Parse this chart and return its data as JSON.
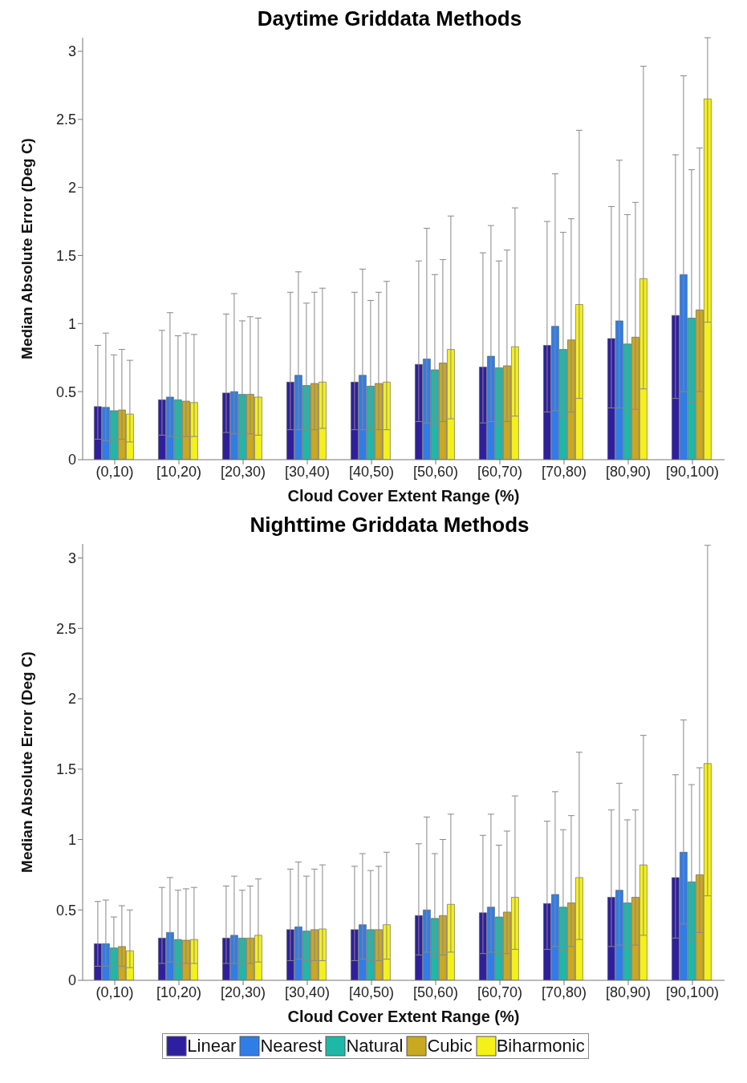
{
  "chart_data": [
    {
      "type": "bar",
      "title": "Daytime Griddata Methods",
      "xlabel": "Cloud Cover Extent Range (%)",
      "ylabel": "Median Absolute Error (Deg C)",
      "categories": [
        "(0,10)",
        "[10,20)",
        "[20,30)",
        "[30,40)",
        "[40,50)",
        "[50,60)",
        "[60,70)",
        "[70,80)",
        "[80,90)",
        "[90,100)"
      ],
      "ylim": [
        0,
        3.1
      ],
      "yticks": [
        0,
        0.5,
        1,
        1.5,
        2,
        2.5,
        3
      ],
      "legend": false,
      "series": [
        {
          "color": "#2e1f9e",
          "values": [
            0.39,
            0.44,
            0.49,
            0.57,
            0.57,
            0.7,
            0.68,
            0.84,
            0.89,
            1.06
          ],
          "errors": [
            [
              0.15,
              0.84
            ],
            [
              0.18,
              0.95
            ],
            [
              0.2,
              1.07
            ],
            [
              0.22,
              1.23
            ],
            [
              0.22,
              1.23
            ],
            [
              0.28,
              1.46
            ],
            [
              0.27,
              1.52
            ],
            [
              0.35,
              1.75
            ],
            [
              0.38,
              1.86
            ],
            [
              0.45,
              2.24
            ]
          ]
        },
        {
          "color": "#2f7de8",
          "values": [
            0.385,
            0.46,
            0.5,
            0.62,
            0.62,
            0.74,
            0.76,
            0.98,
            1.02,
            1.36
          ],
          "errors": [
            [
              0.14,
              0.93
            ],
            [
              0.17,
              1.08
            ],
            [
              0.19,
              1.22
            ],
            [
              0.22,
              1.38
            ],
            [
              0.22,
              1.4
            ],
            [
              0.27,
              1.7
            ],
            [
              0.28,
              1.72
            ],
            [
              0.36,
              2.1
            ],
            [
              0.38,
              2.2
            ],
            [
              0.5,
              2.82
            ]
          ]
        },
        {
          "color": "#1fb8a8",
          "values": [
            0.36,
            0.44,
            0.48,
            0.545,
            0.54,
            0.66,
            0.675,
            0.81,
            0.85,
            1.04
          ],
          "errors": [
            [
              0.14,
              0.77
            ],
            [
              0.17,
              0.91
            ],
            [
              0.19,
              1.02
            ],
            [
              0.21,
              1.15
            ],
            [
              0.21,
              1.17
            ],
            [
              0.26,
              1.36
            ],
            [
              0.26,
              1.46
            ],
            [
              0.32,
              1.67
            ],
            [
              0.34,
              1.8
            ],
            [
              0.42,
              2.13
            ]
          ]
        },
        {
          "color": "#c9a822",
          "values": [
            0.365,
            0.43,
            0.48,
            0.56,
            0.56,
            0.71,
            0.69,
            0.88,
            0.9,
            1.1
          ],
          "errors": [
            [
              0.15,
              0.81
            ],
            [
              0.17,
              0.93
            ],
            [
              0.19,
              1.05
            ],
            [
              0.22,
              1.23
            ],
            [
              0.22,
              1.23
            ],
            [
              0.28,
              1.47
            ],
            [
              0.28,
              1.54
            ],
            [
              0.35,
              1.77
            ],
            [
              0.37,
              1.89
            ],
            [
              0.5,
              2.29
            ]
          ]
        },
        {
          "color": "#f5f01a",
          "values": [
            0.335,
            0.42,
            0.46,
            0.57,
            0.57,
            0.81,
            0.83,
            1.14,
            1.33,
            2.65
          ],
          "errors": [
            [
              0.13,
              0.73
            ],
            [
              0.17,
              0.92
            ],
            [
              0.18,
              1.04
            ],
            [
              0.23,
              1.26
            ],
            [
              0.22,
              1.31
            ],
            [
              0.3,
              1.79
            ],
            [
              0.32,
              1.85
            ],
            [
              0.45,
              2.42
            ],
            [
              0.52,
              2.89
            ],
            [
              1.01,
              3.1
            ]
          ]
        }
      ]
    },
    {
      "type": "bar",
      "title": "Nighttime Griddata Methods",
      "xlabel": "Cloud Cover Extent Range (%)",
      "ylabel": "Median Absolute Error (Deg C)",
      "categories": [
        "(0,10)",
        "[10,20)",
        "[20,30)",
        "[30,40)",
        "[40,50)",
        "[50,60)",
        "[60,70)",
        "[70,80)",
        "[80,90)",
        "[90,100)"
      ],
      "ylim": [
        0,
        3.1
      ],
      "yticks": [
        0,
        0.5,
        1,
        1.5,
        2,
        2.5,
        3
      ],
      "legend": "bottom",
      "series": [
        {
          "name": "Linear",
          "color": "#2e1f9e",
          "values": [
            0.26,
            0.3,
            0.3,
            0.36,
            0.36,
            0.46,
            0.48,
            0.545,
            0.59,
            0.73
          ],
          "errors": [
            [
              0.1,
              0.56
            ],
            [
              0.12,
              0.66
            ],
            [
              0.12,
              0.67
            ],
            [
              0.14,
              0.79
            ],
            [
              0.14,
              0.81
            ],
            [
              0.18,
              0.97
            ],
            [
              0.19,
              1.03
            ],
            [
              0.22,
              1.13
            ],
            [
              0.24,
              1.21
            ],
            [
              0.3,
              1.46
            ]
          ]
        },
        {
          "name": "Nearest",
          "color": "#2f7de8",
          "values": [
            0.26,
            0.34,
            0.32,
            0.38,
            0.395,
            0.5,
            0.52,
            0.61,
            0.64,
            0.91
          ],
          "errors": [
            [
              0.1,
              0.57
            ],
            [
              0.13,
              0.73
            ],
            [
              0.12,
              0.74
            ],
            [
              0.15,
              0.84
            ],
            [
              0.15,
              0.9
            ],
            [
              0.2,
              1.16
            ],
            [
              0.2,
              1.18
            ],
            [
              0.24,
              1.34
            ],
            [
              0.25,
              1.4
            ],
            [
              0.4,
              1.85
            ]
          ]
        },
        {
          "name": "Natural",
          "color": "#1fb8a8",
          "values": [
            0.23,
            0.29,
            0.3,
            0.35,
            0.36,
            0.44,
            0.45,
            0.52,
            0.55,
            0.7
          ],
          "errors": [
            [
              0.09,
              0.45
            ],
            [
              0.11,
              0.64
            ],
            [
              0.12,
              0.64
            ],
            [
              0.14,
              0.74
            ],
            [
              0.14,
              0.78
            ],
            [
              0.17,
              0.9
            ],
            [
              0.18,
              0.96
            ],
            [
              0.21,
              1.07
            ],
            [
              0.22,
              1.14
            ],
            [
              0.28,
              1.39
            ]
          ]
        },
        {
          "name": "Cubic",
          "color": "#c9a822",
          "values": [
            0.24,
            0.285,
            0.3,
            0.36,
            0.36,
            0.46,
            0.485,
            0.55,
            0.59,
            0.75
          ],
          "errors": [
            [
              0.1,
              0.53
            ],
            [
              0.12,
              0.65
            ],
            [
              0.12,
              0.67
            ],
            [
              0.14,
              0.79
            ],
            [
              0.14,
              0.81
            ],
            [
              0.18,
              1.0
            ],
            [
              0.19,
              1.06
            ],
            [
              0.24,
              1.17
            ],
            [
              0.25,
              1.21
            ],
            [
              0.34,
              1.51
            ]
          ]
        },
        {
          "name": "Biharmonic",
          "color": "#f5f01a",
          "values": [
            0.21,
            0.29,
            0.32,
            0.365,
            0.395,
            0.54,
            0.59,
            0.73,
            0.82,
            1.54
          ],
          "errors": [
            [
              0.09,
              0.5
            ],
            [
              0.12,
              0.66
            ],
            [
              0.13,
              0.72
            ],
            [
              0.14,
              0.82
            ],
            [
              0.15,
              0.91
            ],
            [
              0.2,
              1.18
            ],
            [
              0.22,
              1.31
            ],
            [
              0.29,
              1.62
            ],
            [
              0.32,
              1.74
            ],
            [
              0.6,
              3.09
            ]
          ]
        }
      ]
    }
  ]
}
